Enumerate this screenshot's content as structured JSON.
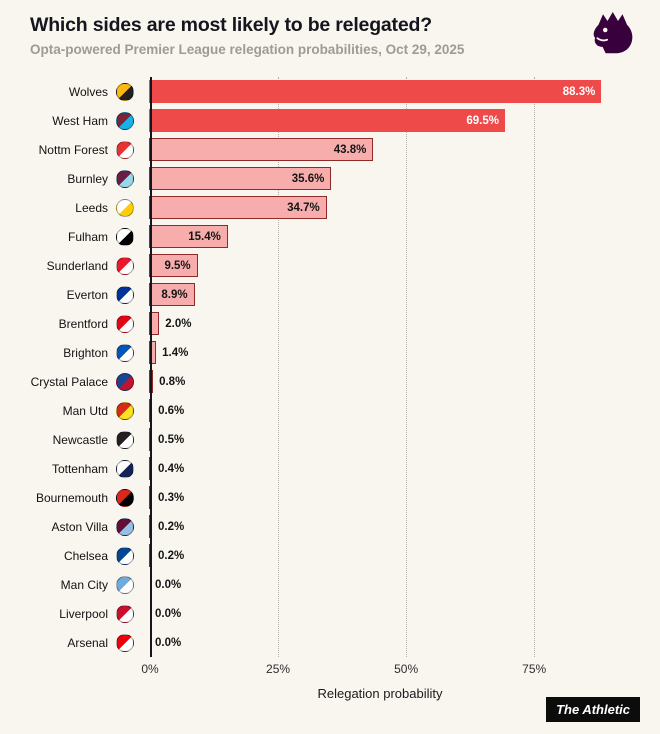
{
  "chart_data": {
    "type": "bar",
    "orientation": "horizontal",
    "title": "Which sides are most likely to be relegated?",
    "subtitle": "Opta-powered Premier League relegation probabilities, Oct 29, 2025",
    "xlabel": "Relegation probability",
    "x_ticks": [
      "0%",
      "25%",
      "50%",
      "75%"
    ],
    "x_tick_values": [
      0,
      25,
      50,
      75
    ],
    "xlim": [
      0,
      89.8
    ],
    "grid": "dotted-vertical",
    "bar_color_strong": "#ee4a4a",
    "bar_color_light": "#f6adab",
    "categories": [
      "Wolves",
      "West Ham",
      "Nottm Forest",
      "Burnley",
      "Leeds",
      "Fulham",
      "Sunderland",
      "Everton",
      "Brentford",
      "Brighton",
      "Crystal Palace",
      "Man Utd",
      "Newcastle",
      "Tottenham",
      "Bournemouth",
      "Aston Villa",
      "Chelsea",
      "Man City",
      "Liverpool",
      "Arsenal"
    ],
    "values": [
      88.3,
      69.5,
      43.8,
      35.6,
      34.7,
      15.4,
      9.5,
      8.9,
      2.0,
      1.4,
      0.8,
      0.6,
      0.5,
      0.4,
      0.3,
      0.2,
      0.2,
      0.0,
      0.0,
      0.0
    ],
    "teams": [
      {
        "name": "Wolves",
        "value": 88.3,
        "label": "88.3%",
        "strong": true,
        "crest": [
          "#fdb913",
          "#231f20"
        ]
      },
      {
        "name": "West Ham",
        "value": 69.5,
        "label": "69.5%",
        "strong": true,
        "crest": [
          "#7a263a",
          "#1bb1e7"
        ]
      },
      {
        "name": "Nottm Forest",
        "value": 43.8,
        "label": "43.8%",
        "strong": false,
        "crest": [
          "#e53233",
          "#ffffff"
        ]
      },
      {
        "name": "Burnley",
        "value": 35.6,
        "label": "35.6%",
        "strong": false,
        "crest": [
          "#6c1d45",
          "#99d6ea"
        ]
      },
      {
        "name": "Leeds",
        "value": 34.7,
        "label": "34.7%",
        "strong": false,
        "crest": [
          "#ffffff",
          "#ffcd00"
        ]
      },
      {
        "name": "Fulham",
        "value": 15.4,
        "label": "15.4%",
        "strong": false,
        "crest": [
          "#ffffff",
          "#000000"
        ]
      },
      {
        "name": "Sunderland",
        "value": 9.5,
        "label": "9.5%",
        "strong": false,
        "crest": [
          "#eb172b",
          "#ffffff"
        ]
      },
      {
        "name": "Everton",
        "value": 8.9,
        "label": "8.9%",
        "strong": false,
        "crest": [
          "#003399",
          "#ffffff"
        ]
      },
      {
        "name": "Brentford",
        "value": 2.0,
        "label": "2.0%",
        "strong": false,
        "crest": [
          "#e30613",
          "#ffffff"
        ]
      },
      {
        "name": "Brighton",
        "value": 1.4,
        "label": "1.4%",
        "strong": false,
        "crest": [
          "#0057b8",
          "#ffffff"
        ]
      },
      {
        "name": "Crystal Palace",
        "value": 0.8,
        "label": "0.8%",
        "strong": false,
        "crest": [
          "#1b458f",
          "#c4122e"
        ]
      },
      {
        "name": "Man Utd",
        "value": 0.6,
        "label": "0.6%",
        "strong": false,
        "crest": [
          "#da291c",
          "#fbe122"
        ]
      },
      {
        "name": "Newcastle",
        "value": 0.5,
        "label": "0.5%",
        "strong": false,
        "crest": [
          "#241f20",
          "#ffffff"
        ]
      },
      {
        "name": "Tottenham",
        "value": 0.4,
        "label": "0.4%",
        "strong": false,
        "crest": [
          "#ffffff",
          "#132257"
        ]
      },
      {
        "name": "Bournemouth",
        "value": 0.3,
        "label": "0.3%",
        "strong": false,
        "crest": [
          "#da291c",
          "#000000"
        ]
      },
      {
        "name": "Aston Villa",
        "value": 0.2,
        "label": "0.2%",
        "strong": false,
        "crest": [
          "#670e36",
          "#95bfe5"
        ]
      },
      {
        "name": "Chelsea",
        "value": 0.2,
        "label": "0.2%",
        "strong": false,
        "crest": [
          "#034694",
          "#ffffff"
        ]
      },
      {
        "name": "Man City",
        "value": 0.0,
        "label": "0.0%",
        "strong": false,
        "crest": [
          "#6cabdd",
          "#ffffff"
        ]
      },
      {
        "name": "Liverpool",
        "value": 0.0,
        "label": "0.0%",
        "strong": false,
        "crest": [
          "#c8102e",
          "#ffffff"
        ]
      },
      {
        "name": "Arsenal",
        "value": 0.0,
        "label": "0.0%",
        "strong": false,
        "crest": [
          "#ef0107",
          "#ffffff"
        ]
      }
    ]
  },
  "logo": {
    "name": "premier-league-logo",
    "color": "#38003c"
  },
  "footer": {
    "brand": "The Athletic"
  }
}
